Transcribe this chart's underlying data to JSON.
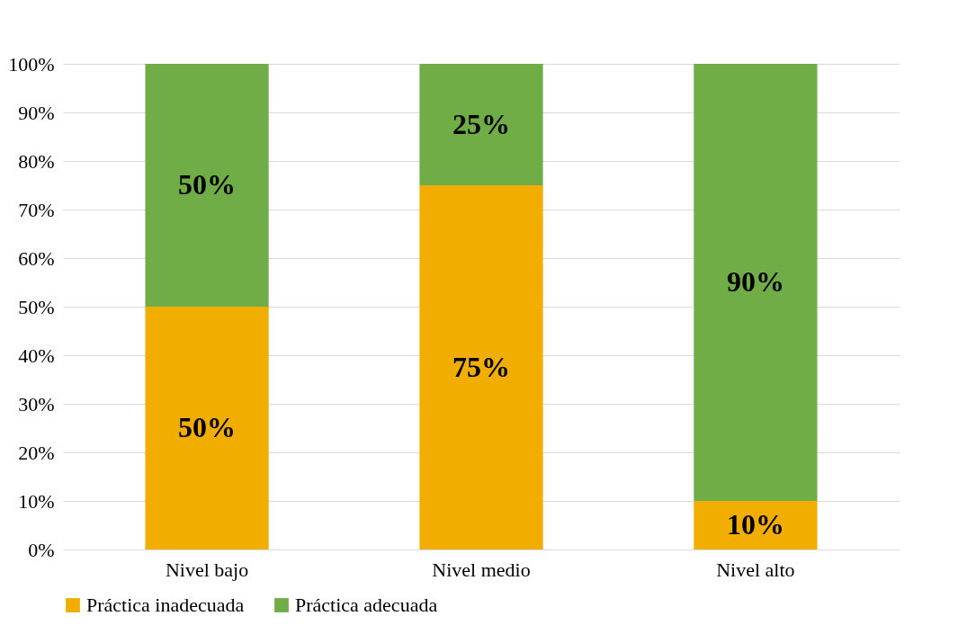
{
  "chart_data": {
    "type": "bar",
    "stacked": true,
    "categories": [
      "Nivel bajo",
      "Nivel medio",
      "Nivel alto"
    ],
    "series": [
      {
        "name": "Práctica inadecuada",
        "color": "#f2ae00",
        "values": [
          50,
          75,
          10
        ],
        "value_labels": [
          "50%",
          "75%",
          "10%"
        ]
      },
      {
        "name": "Práctica adecuada",
        "color": "#70ad47",
        "values": [
          50,
          25,
          90
        ],
        "value_labels": [
          "50%",
          "25%",
          "90%"
        ]
      }
    ],
    "ylim": [
      0,
      100
    ],
    "yticks": [
      {
        "value": 0,
        "label": "0%"
      },
      {
        "value": 10,
        "label": "10%"
      },
      {
        "value": 20,
        "label": "20%"
      },
      {
        "value": 30,
        "label": "30%"
      },
      {
        "value": 40,
        "label": "40%"
      },
      {
        "value": 50,
        "label": "50%"
      },
      {
        "value": 60,
        "label": "60%"
      },
      {
        "value": 70,
        "label": "70%"
      },
      {
        "value": 80,
        "label": "80%"
      },
      {
        "value": 90,
        "label": "90%"
      },
      {
        "value": 100,
        "label": "100%"
      }
    ],
    "grid": "y",
    "legend": "bottom"
  }
}
